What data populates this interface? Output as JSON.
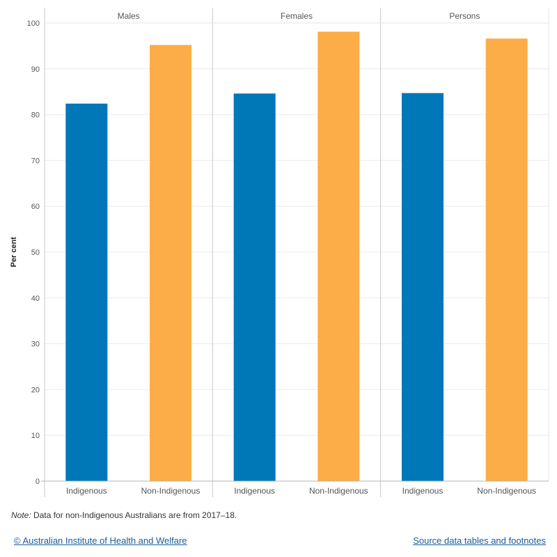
{
  "chart_data": {
    "type": "bar",
    "ylabel": "Per cent",
    "ylim": [
      0,
      100
    ],
    "yticks": [
      0,
      10,
      20,
      30,
      40,
      50,
      60,
      70,
      80,
      90,
      100
    ],
    "grid": true,
    "panels": [
      {
        "name": "Males",
        "categories": [
          "Indigenous",
          "Non-Indigenous"
        ],
        "values": [
          82.4,
          95.2
        ]
      },
      {
        "name": "Females",
        "categories": [
          "Indigenous",
          "Non-Indigenous"
        ],
        "values": [
          84.6,
          98.1
        ]
      },
      {
        "name": "Persons",
        "categories": [
          "Indigenous",
          "Non-Indigenous"
        ],
        "values": [
          84.7,
          96.6
        ]
      }
    ],
    "colors": {
      "Indigenous": "#0077b6",
      "Non-Indigenous": "#fcad47"
    }
  },
  "note": {
    "label": "Note:",
    "text": " Data for non-Indigenous Australians are from 2017–18."
  },
  "footer": {
    "copyright_link": "© Australian Institute of Health and Welfare",
    "source_link": "Source data tables and footnotes"
  }
}
